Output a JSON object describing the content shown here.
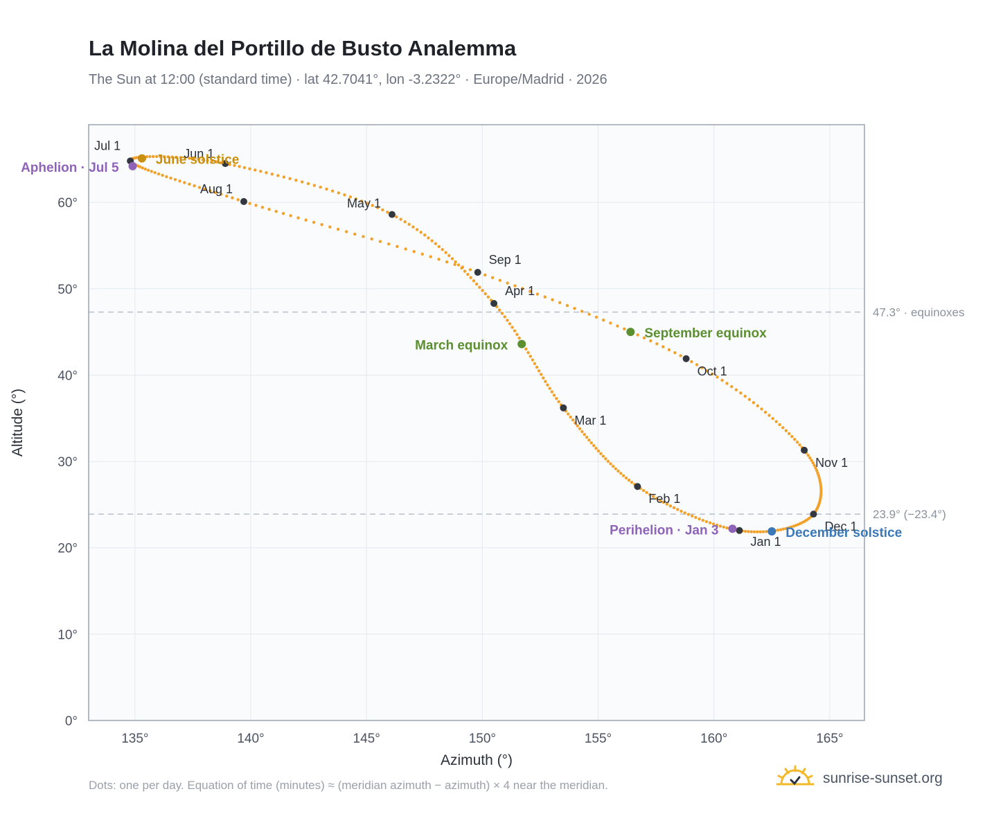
{
  "header": {
    "title": "La Molina del Portillo de Busto Analemma",
    "subtitle": "The Sun at 12:00 (standard time) · lat 42.7041°, lon -3.2322° · Europe/Madrid · 2026"
  },
  "footer": {
    "note": "Dots: one per day. Equation of time (minutes) ≈ (meridian azimuth − azimuth) × 4 near the meridian.",
    "brand": "sunrise-sunset.org",
    "brand_icon": "sun-icon"
  },
  "colors": {
    "curve": "#f2a22a",
    "month_marker": "#333840",
    "june_solstice": "#c9900f",
    "december_solstice": "#3a78b8",
    "equinox": "#5b8f2f",
    "apsis": "#8f63b8",
    "reference_line": "#b8c0cc"
  },
  "chart_data": {
    "type": "scatter",
    "xlabel": "Azimuth (°)",
    "ylabel": "Altitude (°)",
    "xlim": [
      133,
      166.5
    ],
    "ylim": [
      0,
      69
    ],
    "xticks": [
      135,
      140,
      145,
      150,
      155,
      160,
      165
    ],
    "xtick_labels": [
      "135°",
      "140°",
      "145°",
      "150°",
      "155°",
      "160°",
      "165°"
    ],
    "yticks": [
      0,
      10,
      20,
      30,
      40,
      50,
      60
    ],
    "ytick_labels": [
      "0°",
      "10°",
      "20°",
      "30°",
      "40°",
      "50°",
      "60°"
    ],
    "grid": true,
    "series": [
      {
        "marker": "daily-dot",
        "key_points": [
          {
            "x": 161.1,
            "y": 22.0
          },
          {
            "x": 156.7,
            "y": 27.1
          },
          {
            "x": 153.5,
            "y": 36.2
          },
          {
            "x": 150.5,
            "y": 48.3
          },
          {
            "x": 146.1,
            "y": 58.6
          },
          {
            "x": 138.9,
            "y": 64.5
          },
          {
            "x": 134.8,
            "y": 64.8
          },
          {
            "x": 139.7,
            "y": 60.1
          },
          {
            "x": 149.8,
            "y": 51.9
          },
          {
            "x": 158.8,
            "y": 41.9
          },
          {
            "x": 163.9,
            "y": 31.3
          },
          {
            "x": 164.3,
            "y": 23.9
          }
        ]
      }
    ],
    "month_markers": [
      {
        "label": "Jan 1",
        "x": 161.1,
        "y": 22.0
      },
      {
        "label": "Feb 1",
        "x": 156.7,
        "y": 27.1
      },
      {
        "label": "Mar 1",
        "x": 153.5,
        "y": 36.2
      },
      {
        "label": "Apr 1",
        "x": 150.5,
        "y": 48.3
      },
      {
        "label": "May 1",
        "x": 146.1,
        "y": 58.6
      },
      {
        "label": "Jun 1",
        "x": 138.9,
        "y": 64.5
      },
      {
        "label": "Jul 1",
        "x": 134.8,
        "y": 64.8
      },
      {
        "label": "Aug 1",
        "x": 139.7,
        "y": 60.1
      },
      {
        "label": "Sep 1",
        "x": 149.8,
        "y": 51.9
      },
      {
        "label": "Oct 1",
        "x": 158.8,
        "y": 41.9
      },
      {
        "label": "Nov 1",
        "x": 163.9,
        "y": 31.3
      },
      {
        "label": "Dec 1",
        "x": 164.3,
        "y": 23.9
      }
    ],
    "events": [
      {
        "label": "June solstice",
        "x": 135.3,
        "y": 65.1,
        "color": "#c9900f"
      },
      {
        "label": "December solstice",
        "x": 162.5,
        "y": 21.9,
        "color": "#3a78b8"
      },
      {
        "label": "March equinox",
        "x": 151.7,
        "y": 43.6,
        "color": "#5b8f2f"
      },
      {
        "label": "September equinox",
        "x": 156.4,
        "y": 45.0,
        "color": "#5b8f2f"
      },
      {
        "label": "Aphelion · Jul 5",
        "x": 134.9,
        "y": 64.2,
        "color": "#8f63b8"
      },
      {
        "label": "Perihelion · Jan 3",
        "x": 160.8,
        "y": 22.2,
        "color": "#8f63b8"
      }
    ],
    "reference_lines": [
      {
        "y": 47.3,
        "label": "47.3° · equinoxes"
      },
      {
        "y": 23.9,
        "label": "23.9° (−23.4°)"
      }
    ]
  }
}
